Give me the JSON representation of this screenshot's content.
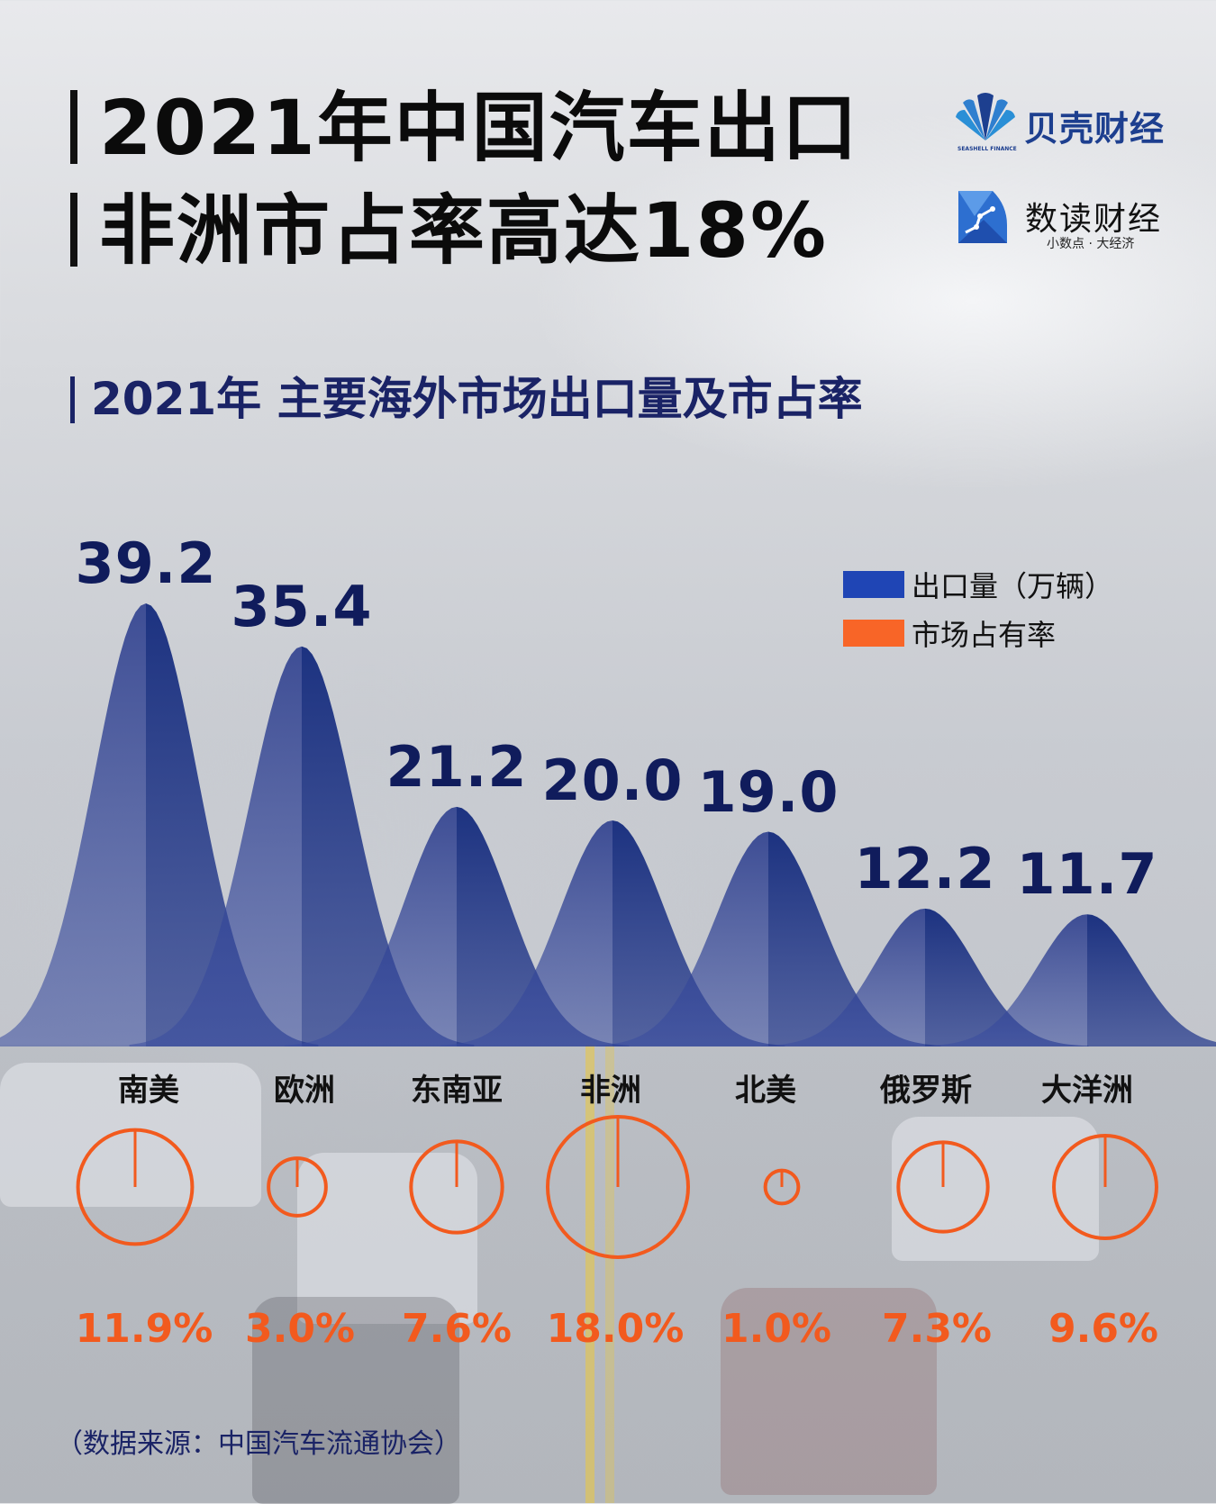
{
  "header": {
    "title_line1": "2021年中国汽车出口",
    "title_line2": "非洲市占率高达18%"
  },
  "logos": {
    "seashell": {
      "name": "贝壳财经",
      "en": "SEASHELL FINANCE"
    },
    "shudu": {
      "name": "数读财经",
      "tagline": "小数点 · 大经济"
    }
  },
  "subtitle": "2021年 主要海外市场出口量及市占率",
  "legend": [
    {
      "label": "出口量（万辆）",
      "color": "#1f45b5"
    },
    {
      "label": "市场占有率",
      "color": "#f86527"
    }
  ],
  "colors": {
    "volume": "#1a2a80",
    "share": "#f25a1e",
    "label": "#101c5c"
  },
  "source": "（数据来源：中国汽车流通协会）",
  "chart_data": {
    "type": "area",
    "title": "2021年 主要海外市场出口量及市占率",
    "categories": [
      "南美",
      "欧洲",
      "东南亚",
      "非洲",
      "北美",
      "俄罗斯",
      "大洋洲"
    ],
    "series": [
      {
        "name": "出口量（万辆）",
        "values": [
          39.2,
          35.4,
          21.2,
          20.0,
          19.0,
          12.2,
          11.7
        ],
        "labels": [
          "39.2",
          "35.4",
          "21.2",
          "20.0",
          "19.0",
          "12.2",
          "11.7"
        ],
        "style": "bell-curve peaks"
      },
      {
        "name": "市场占有率",
        "values": [
          11.9,
          3.0,
          7.6,
          18.0,
          1.0,
          7.3,
          9.6
        ],
        "labels": [
          "11.9%",
          "3.0%",
          "7.6%",
          "18.0%",
          "1.0%",
          "7.3%",
          "9.6%"
        ],
        "style": "circles sized by share"
      }
    ],
    "legend_position": "top-right",
    "grid": false,
    "xlabel": "",
    "ylabel": ""
  }
}
